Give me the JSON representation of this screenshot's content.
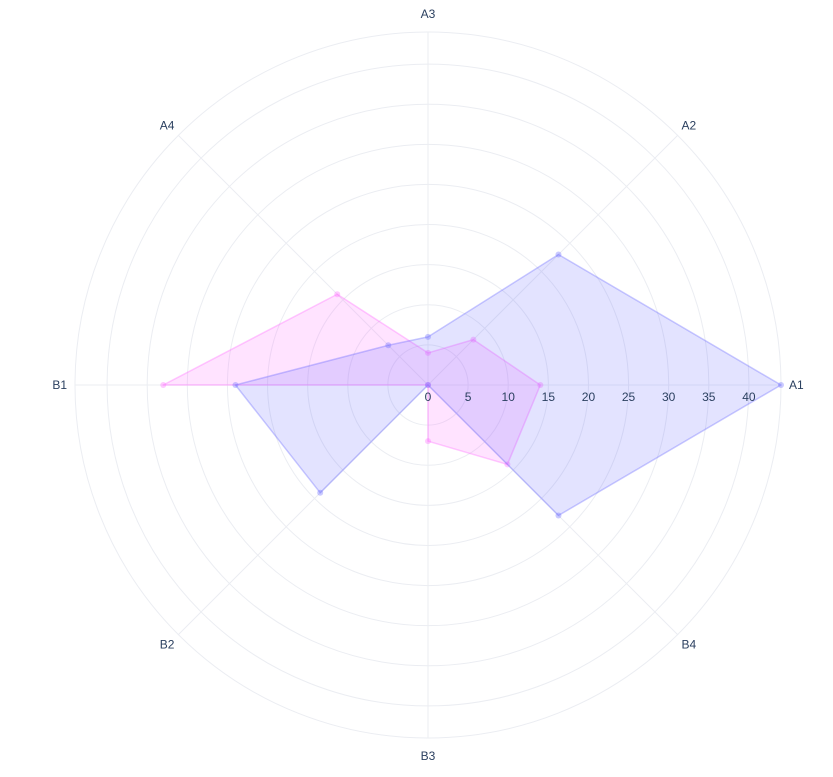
{
  "chart_data": {
    "type": "radar",
    "categories": [
      "A1",
      "A2",
      "A3",
      "A4",
      "B1",
      "B2",
      "B3",
      "B4"
    ],
    "radial_range": [
      0,
      44
    ],
    "radial_ticks": [
      0,
      5,
      10,
      15,
      20,
      25,
      30,
      35,
      40
    ],
    "grid": true,
    "legend": "none",
    "series": [
      {
        "values": [
          14,
          8,
          4,
          16,
          33,
          0,
          7,
          14
        ],
        "color": "#ff66ff"
      },
      {
        "values": [
          44,
          23,
          6,
          7,
          24,
          19,
          0,
          23
        ],
        "color": "#6666ff"
      }
    ]
  }
}
